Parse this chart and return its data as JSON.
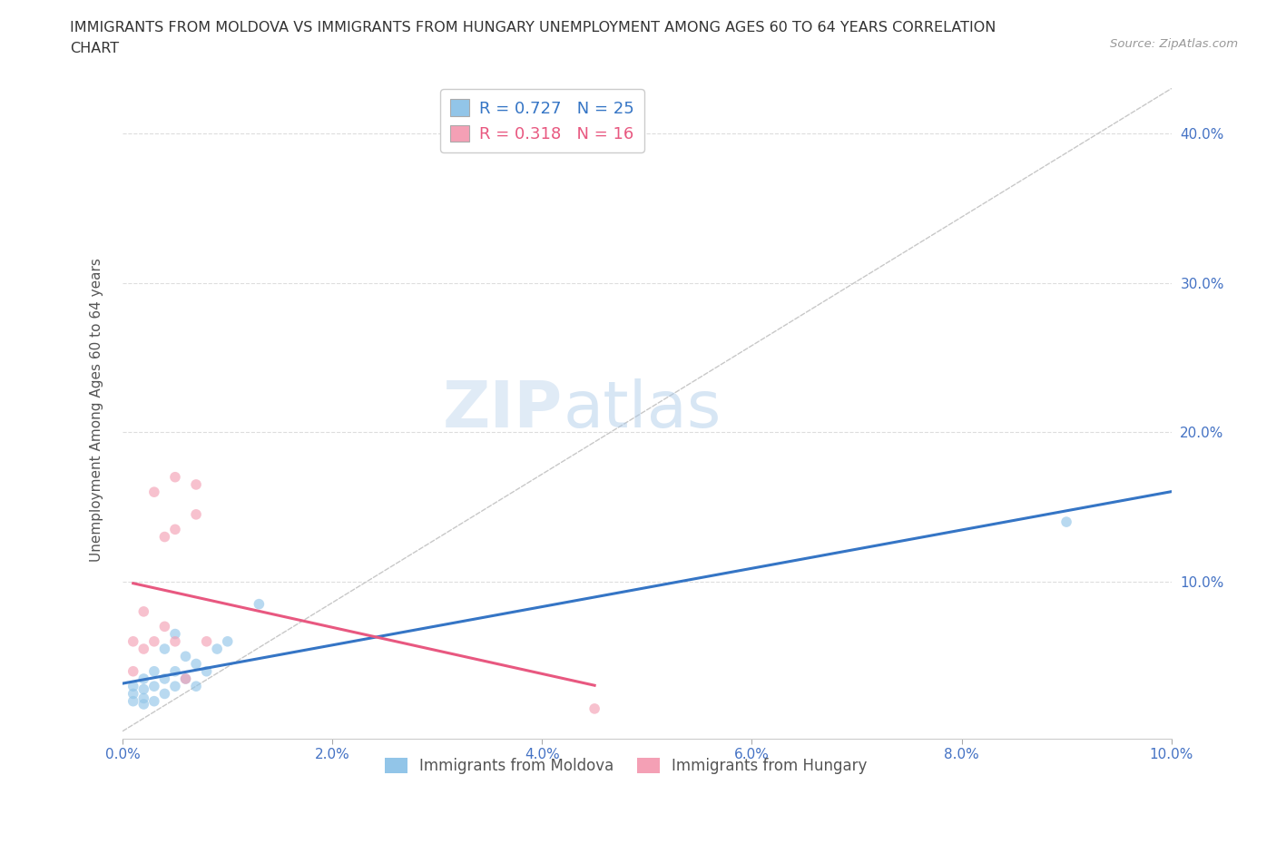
{
  "title_line1": "IMMIGRANTS FROM MOLDOVA VS IMMIGRANTS FROM HUNGARY UNEMPLOYMENT AMONG AGES 60 TO 64 YEARS CORRELATION",
  "title_line2": "CHART",
  "source_text": "Source: ZipAtlas.com",
  "ylabel": "Unemployment Among Ages 60 to 64 years",
  "xlim": [
    0.0,
    0.1
  ],
  "ylim": [
    -0.005,
    0.435
  ],
  "xticks": [
    0.0,
    0.02,
    0.04,
    0.06,
    0.08,
    0.1
  ],
  "yticks": [
    0.1,
    0.2,
    0.3,
    0.4
  ],
  "xticklabels": [
    "0.0%",
    "2.0%",
    "4.0%",
    "6.0%",
    "8.0%",
    "10.0%"
  ],
  "yticklabels": [
    "10.0%",
    "20.0%",
    "30.0%",
    "40.0%"
  ],
  "moldova_x": [
    0.001,
    0.001,
    0.001,
    0.002,
    0.002,
    0.002,
    0.002,
    0.003,
    0.003,
    0.003,
    0.004,
    0.004,
    0.004,
    0.005,
    0.005,
    0.005,
    0.006,
    0.006,
    0.007,
    0.007,
    0.008,
    0.009,
    0.01,
    0.013,
    0.09
  ],
  "moldova_y": [
    0.02,
    0.025,
    0.03,
    0.018,
    0.022,
    0.028,
    0.035,
    0.02,
    0.03,
    0.04,
    0.025,
    0.035,
    0.055,
    0.03,
    0.04,
    0.065,
    0.035,
    0.05,
    0.03,
    0.045,
    0.04,
    0.055,
    0.06,
    0.085,
    0.14
  ],
  "hungary_x": [
    0.001,
    0.001,
    0.002,
    0.002,
    0.003,
    0.003,
    0.004,
    0.004,
    0.005,
    0.005,
    0.005,
    0.006,
    0.007,
    0.007,
    0.008,
    0.045
  ],
  "hungary_y": [
    0.04,
    0.06,
    0.055,
    0.08,
    0.06,
    0.16,
    0.07,
    0.13,
    0.06,
    0.135,
    0.17,
    0.035,
    0.145,
    0.165,
    0.06,
    0.015
  ],
  "moldova_color": "#92C5E8",
  "hungary_color": "#F4A0B5",
  "moldova_line_color": "#3575C5",
  "hungary_line_color": "#E85880",
  "diagonal_color": "#C8C8C8",
  "moldova_label": "Immigrants from Moldova",
  "hungary_label": "Immigrants from Hungary",
  "moldova_R": "R = 0.727",
  "moldova_N": "N = 25",
  "hungary_R": "R = 0.318",
  "hungary_N": "N = 16",
  "watermark_zip": "ZIP",
  "watermark_atlas": "atlas",
  "marker_size": 70,
  "alpha": 0.65,
  "line_width": 2.2
}
